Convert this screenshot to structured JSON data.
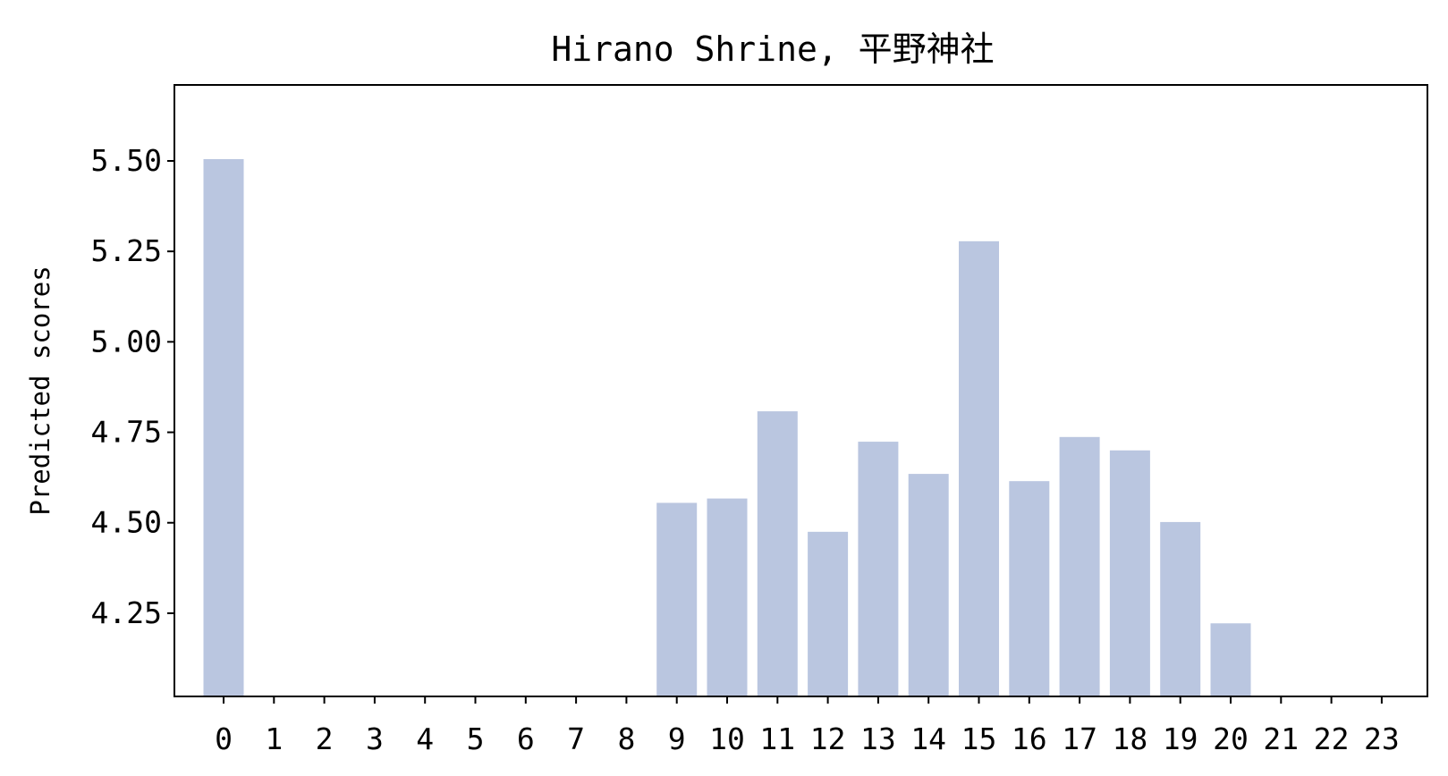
{
  "chart_data": {
    "type": "bar",
    "title": "Hirano Shrine, 平野神社",
    "xlabel": "",
    "ylabel": "Predicted scores",
    "categories": [
      "0",
      "1",
      "2",
      "3",
      "4",
      "5",
      "6",
      "7",
      "8",
      "9",
      "10",
      "11",
      "12",
      "13",
      "14",
      "15",
      "16",
      "17",
      "18",
      "19",
      "20",
      "21",
      "22",
      "23"
    ],
    "values": [
      5.505,
      null,
      null,
      null,
      null,
      null,
      null,
      null,
      null,
      4.555,
      4.567,
      4.808,
      4.475,
      4.724,
      4.635,
      5.278,
      4.615,
      4.737,
      4.7,
      4.502,
      4.222,
      null,
      null,
      null
    ],
    "yticks": [
      "4.25",
      "4.50",
      "4.75",
      "5.00",
      "5.25",
      "5.50"
    ],
    "ylim": [
      4.02,
      5.71
    ],
    "grid": false,
    "bar_color": "#bac6e0"
  }
}
